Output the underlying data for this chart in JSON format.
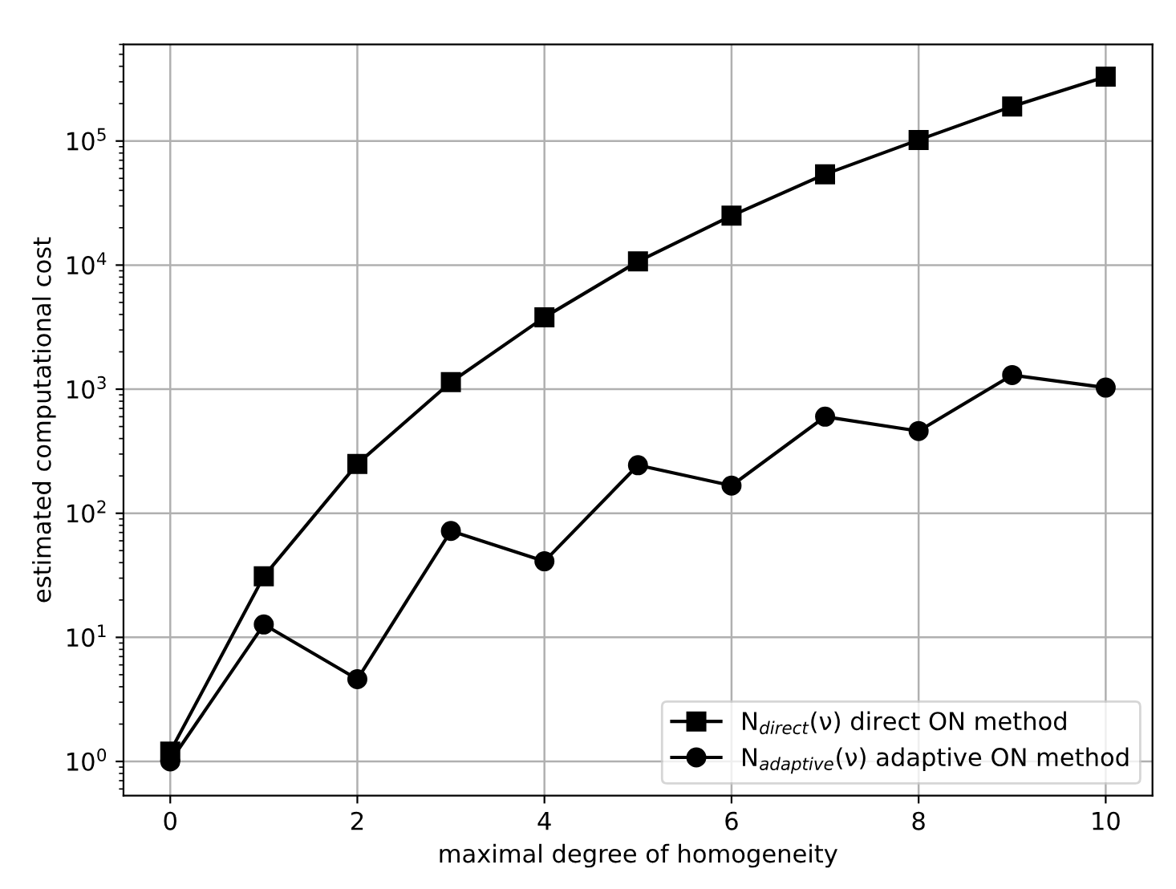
{
  "chart_data": {
    "type": "line",
    "xlabel": "maximal degree of homogeneity",
    "ylabel": "estimated computational cost",
    "x": [
      0,
      1,
      2,
      3,
      4,
      5,
      6,
      7,
      8,
      9,
      10
    ],
    "series": [
      {
        "name": "N$_{direct}$(ν) direct ON method",
        "color": "#000000",
        "marker": "square",
        "values": [
          1.2,
          31,
          250,
          1140,
          3800,
          10700,
          25000,
          54000,
          102000,
          190000,
          330000
        ]
      },
      {
        "name": "N$_{adaptive}$(ν) adaptive ON method",
        "color": "#000000",
        "marker": "circle",
        "values": [
          1.0,
          12.7,
          4.6,
          72,
          41,
          244,
          167,
          600,
          460,
          1300,
          1030
        ]
      }
    ],
    "log": "y",
    "xlim": [
      -0.5,
      10.5
    ],
    "xticks": [
      0,
      2,
      4,
      6,
      8,
      10
    ],
    "ylim": [
      0.53,
      600000
    ],
    "yticks": [
      {
        "value": 1,
        "label": "10$^{0}$"
      },
      {
        "value": 10,
        "label": "10$^{1}$"
      },
      {
        "value": 100,
        "label": "10$^{2}$"
      },
      {
        "value": 1000,
        "label": "10$^{3}$"
      },
      {
        "value": 10000,
        "label": "10$^{4}$"
      },
      {
        "value": 100000,
        "label": "10$^{5}$"
      }
    ],
    "grid": true,
    "legend": "bottom right",
    "line_style": "solid"
  }
}
